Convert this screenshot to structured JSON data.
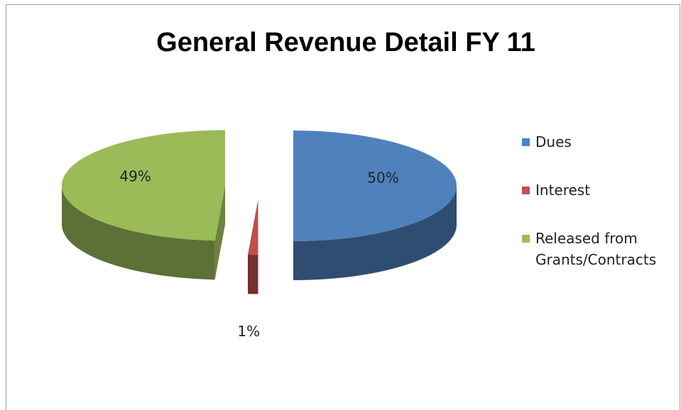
{
  "chart_data": {
    "type": "pie",
    "title": "General Revenue Detail FY 11",
    "categories": [
      "Dues",
      "Interest",
      "Released from Grants/Contracts"
    ],
    "values": [
      50,
      1,
      49
    ],
    "value_labels": [
      "50%",
      "1%",
      "49%"
    ],
    "colors": [
      "#4f81bd",
      "#c0504d",
      "#9bbb59"
    ],
    "legend": "right"
  }
}
